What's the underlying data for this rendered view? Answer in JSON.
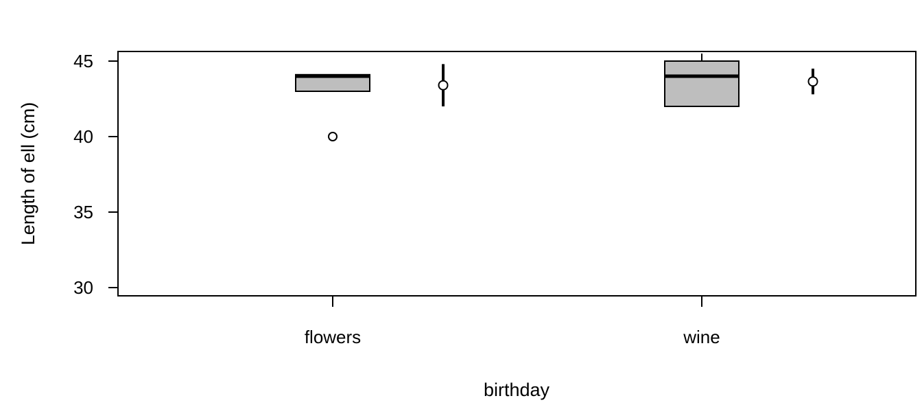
{
  "chart_data": {
    "type": "boxplot",
    "xlabel": "birthday",
    "ylabel": "Length of ell (cm)",
    "ylim": [
      29.5,
      45.6
    ],
    "yticks": [
      30,
      35,
      40,
      45
    ],
    "categories": [
      "flowers",
      "wine"
    ],
    "boxes": [
      {
        "category": "flowers",
        "q1": 43.0,
        "median": 44.0,
        "q3": 44.1,
        "whisker_low": 43.0,
        "whisker_high": 44.1,
        "outliers": [
          40.0
        ]
      },
      {
        "category": "wine",
        "q1": 42.0,
        "median": 44.0,
        "q3": 45.0,
        "whisker_low": 42.0,
        "whisker_high": 45.5,
        "outliers": []
      }
    ],
    "mean_ci": [
      {
        "category": "flowers",
        "mean": 43.4,
        "low": 42.0,
        "high": 44.8
      },
      {
        "category": "wine",
        "mean": 43.65,
        "low": 42.8,
        "high": 44.5
      }
    ],
    "colors": {
      "box_fill": "#bebebe",
      "line": "#000000",
      "background": "#ffffff"
    },
    "grid": false,
    "legend": "none"
  }
}
